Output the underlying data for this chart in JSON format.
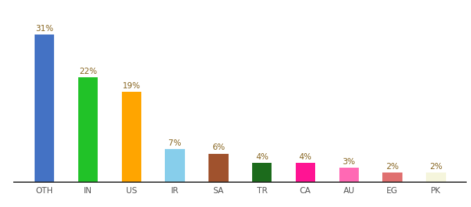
{
  "categories": [
    "OTH",
    "IN",
    "US",
    "IR",
    "SA",
    "TR",
    "CA",
    "AU",
    "EG",
    "PK"
  ],
  "values": [
    31,
    22,
    19,
    7,
    6,
    4,
    4,
    3,
    2,
    2
  ],
  "bar_colors": [
    "#4472C4",
    "#21C228",
    "#FFA500",
    "#87CEEB",
    "#A0522D",
    "#1C6B1C",
    "#FF1493",
    "#FF69B4",
    "#E07070",
    "#F5F5DC"
  ],
  "labels": [
    "31%",
    "22%",
    "19%",
    "7%",
    "6%",
    "4%",
    "4%",
    "3%",
    "2%",
    "2%"
  ],
  "ylim": [
    0,
    36
  ],
  "background_color": "#ffffff",
  "label_color": "#886622",
  "label_fontsize": 8.5,
  "tick_fontsize": 8.5,
  "bar_width": 0.45,
  "figsize": [
    6.8,
    3.0
  ],
  "dpi": 100
}
